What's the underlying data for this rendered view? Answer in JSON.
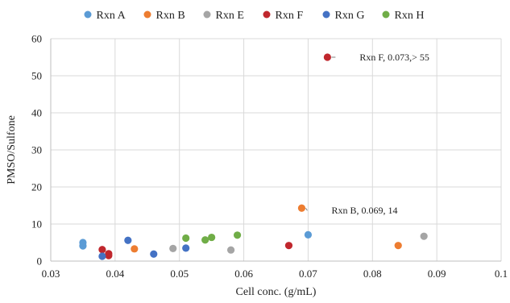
{
  "chart_data": {
    "type": "scatter",
    "xlabel": "Cell conc. (g/mL)",
    "ylabel": "PMSO/Sulfone",
    "xlim": [
      0.03,
      0.1
    ],
    "ylim": [
      0,
      60
    ],
    "xticks": [
      "0.03",
      "0.04",
      "0.05",
      "0.06",
      "0.07",
      "0.08",
      "0.09",
      "0.1"
    ],
    "yticks": [
      "0",
      "10",
      "20",
      "30",
      "40",
      "50",
      "60"
    ],
    "grid": true,
    "legend_position": "top",
    "series": [
      {
        "name": "Rxn A",
        "color": "#5b9bd5",
        "points": [
          [
            0.035,
            5.0
          ],
          [
            0.035,
            4.1
          ],
          [
            0.07,
            7.1
          ]
        ]
      },
      {
        "name": "Rxn B",
        "color": "#ed7d31",
        "points": [
          [
            0.043,
            3.3
          ],
          [
            0.069,
            14.3
          ],
          [
            0.084,
            4.2
          ]
        ]
      },
      {
        "name": "Rxn E",
        "color": "#a5a5a5",
        "points": [
          [
            0.049,
            3.4
          ],
          [
            0.058,
            3.0
          ],
          [
            0.088,
            6.7
          ]
        ]
      },
      {
        "name": "Rxn F",
        "color": "#c0272d",
        "points": [
          [
            0.038,
            3.1
          ],
          [
            0.039,
            2.0
          ],
          [
            0.039,
            1.5
          ],
          [
            0.067,
            4.2
          ],
          [
            0.073,
            55.0
          ]
        ]
      },
      {
        "name": "Rxn G",
        "color": "#4472c4",
        "points": [
          [
            0.038,
            1.3
          ],
          [
            0.042,
            5.6
          ],
          [
            0.046,
            1.9
          ],
          [
            0.051,
            3.5
          ]
        ]
      },
      {
        "name": "Rxn H",
        "color": "#70ad47",
        "points": [
          [
            0.051,
            6.2
          ],
          [
            0.054,
            5.7
          ],
          [
            0.055,
            6.4
          ],
          [
            0.059,
            7.0
          ]
        ]
      }
    ],
    "annotations": [
      {
        "text": "Rxn F, 0.073,> 55",
        "x": 0.073,
        "y": 55.0
      },
      {
        "text": "Rxn B, 0.069, 14",
        "x": 0.069,
        "y": 14.3
      }
    ]
  }
}
